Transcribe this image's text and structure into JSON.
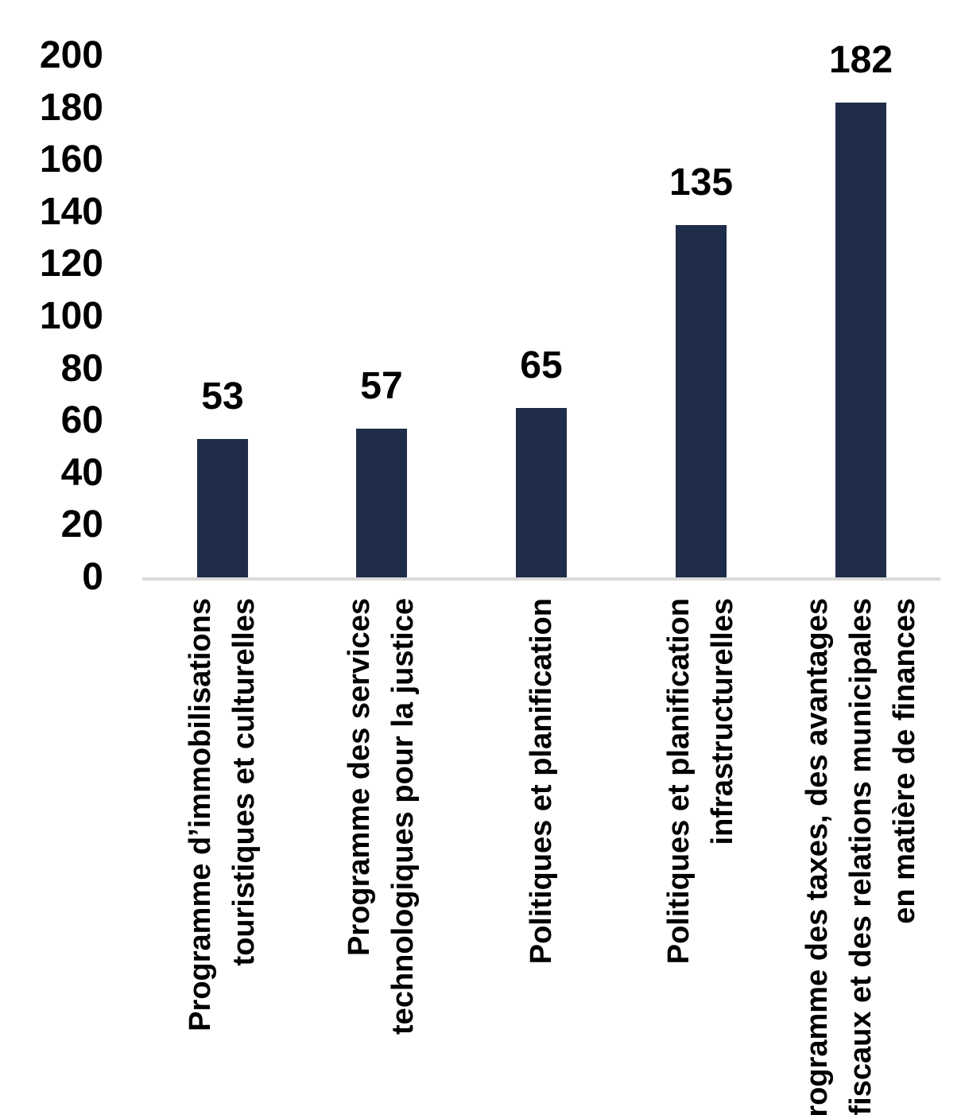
{
  "chart_data": {
    "type": "bar",
    "title": "",
    "categories": [
      "Programme d’immobilisations touristiques et culturelles",
      "Programme des services technologiques pour la justice",
      "Politiques et planification",
      "Politiques et planification infrastructurelles",
      "Programme des taxes, des avantages fiscaux et des relations municipales en matière de finances"
    ],
    "label_lines": [
      [
        "Programme d’immobilisations",
        "touristiques et culturelles"
      ],
      [
        "Programme des services",
        "technologiques pour la justice"
      ],
      [
        "Politiques et planification"
      ],
      [
        "Politiques et planification",
        "infrastructurelles"
      ],
      [
        "Programme des taxes, des avantages",
        "fiscaux et des relations municipales",
        "en matière de finances"
      ]
    ],
    "values": [
      53,
      57,
      65,
      135,
      182
    ],
    "yticks": [
      0,
      20,
      40,
      60,
      80,
      100,
      120,
      140,
      160,
      180,
      200
    ],
    "ylim": [
      0,
      200
    ],
    "xlabel": "",
    "ylabel": "",
    "grid": "off",
    "legend": "none",
    "bar_color": "#1F2C4A",
    "axis_line_color": "#D9D9D9",
    "text_color": "#000000"
  }
}
